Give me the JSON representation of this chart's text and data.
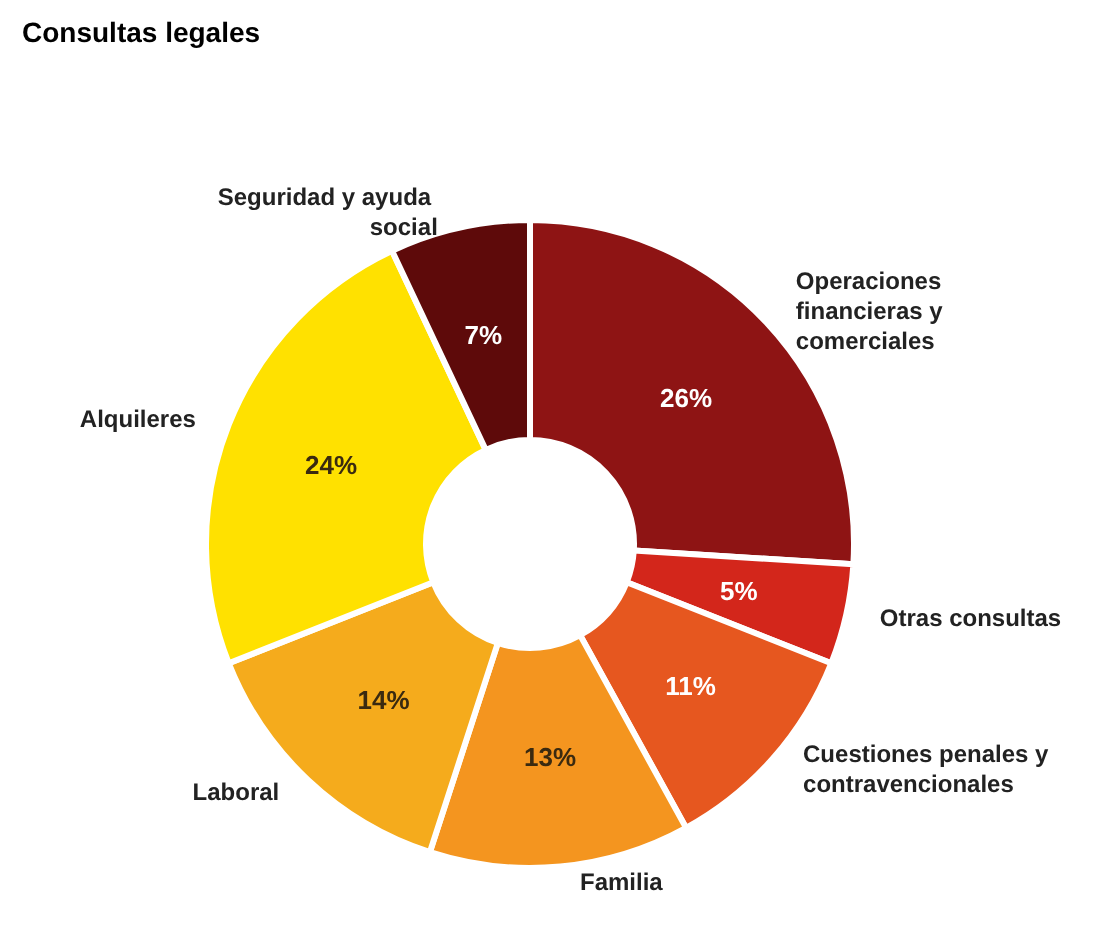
{
  "chart_data": {
    "type": "donut",
    "title": "Consultas legales",
    "categories": [
      "Operaciones financieras y comerciales",
      "Otras consultas",
      "Cuestiones penales y contravencionales",
      "Familia",
      "Laboral",
      "Alquileres",
      "Seguridad y ayuda social"
    ],
    "values": [
      26,
      5,
      11,
      13,
      14,
      24,
      7
    ],
    "value_labels": [
      "26%",
      "5%",
      "11%",
      "13%",
      "14%",
      "24%",
      "7%"
    ],
    "colors": [
      "#8e1414",
      "#d3261b",
      "#e6571f",
      "#f4951f",
      "#f5ab1c",
      "#ffe100",
      "#5e0a0a"
    ],
    "legend": false
  }
}
